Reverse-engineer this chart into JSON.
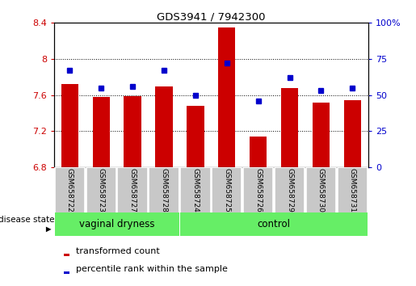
{
  "title": "GDS3941 / 7942300",
  "samples": [
    "GSM658722",
    "GSM658723",
    "GSM658727",
    "GSM658728",
    "GSM658724",
    "GSM658725",
    "GSM658726",
    "GSM658729",
    "GSM658730",
    "GSM658731"
  ],
  "transformed_counts": [
    7.72,
    7.58,
    7.59,
    7.7,
    7.48,
    8.35,
    7.14,
    7.68,
    7.52,
    7.54
  ],
  "percentile_ranks": [
    67,
    55,
    56,
    67,
    50,
    72,
    46,
    62,
    53,
    55
  ],
  "bar_color": "#CC0000",
  "marker_color": "#0000CC",
  "ymin": 6.8,
  "ymax": 8.4,
  "yticks": [
    6.8,
    7.2,
    7.6,
    8.0,
    8.4
  ],
  "ytick_labels_left": [
    "6.8",
    "7.2",
    "7.6",
    "8",
    "8.4"
  ],
  "y2min": 0,
  "y2max": 100,
  "y2ticks": [
    0,
    25,
    50,
    75,
    100
  ],
  "y2tick_labels": [
    "0",
    "25",
    "50",
    "75",
    "100%"
  ],
  "group_divider": 4,
  "label_transformed": "transformed count",
  "label_percentile": "percentile rank within the sample",
  "disease_state_label": "disease state",
  "vaginal_label": "vaginal dryness",
  "control_label": "control",
  "green_color": "#66EE66",
  "gray_color": "#C8C8C8"
}
